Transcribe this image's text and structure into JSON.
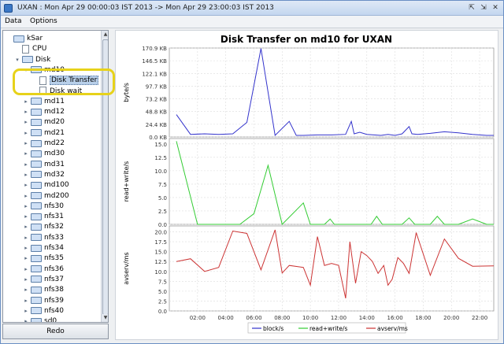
{
  "window": {
    "title": "UXAN : Mon Apr 29 00:00:03 IST 2013 -> Mon Apr 29 23:00:03 IST 2013",
    "controls": [
      "⇱",
      "⇲",
      "✕"
    ]
  },
  "menubar": {
    "items": [
      "Data",
      "Options"
    ]
  },
  "tree": {
    "root": "kSar",
    "items": [
      {
        "label": "kSar",
        "type": "folder",
        "level": 0,
        "twisty": ""
      },
      {
        "label": "CPU",
        "type": "file",
        "level": 1,
        "twisty": ""
      },
      {
        "label": "Disk",
        "type": "folder",
        "level": 1,
        "twisty": "▾"
      },
      {
        "label": "md10",
        "type": "folder",
        "level": 2,
        "twisty": "▾"
      },
      {
        "label": "Disk Transfer",
        "type": "file",
        "level": 3,
        "twisty": "",
        "selected": true
      },
      {
        "label": "Disk wait",
        "type": "file",
        "level": 3,
        "twisty": ""
      },
      {
        "label": "md11",
        "type": "folder",
        "level": 2,
        "twisty": "▸"
      },
      {
        "label": "md12",
        "type": "folder",
        "level": 2,
        "twisty": "▸"
      },
      {
        "label": "md20",
        "type": "folder",
        "level": 2,
        "twisty": "▸"
      },
      {
        "label": "md21",
        "type": "folder",
        "level": 2,
        "twisty": "▸"
      },
      {
        "label": "md22",
        "type": "folder",
        "level": 2,
        "twisty": "▸"
      },
      {
        "label": "md30",
        "type": "folder",
        "level": 2,
        "twisty": "▸"
      },
      {
        "label": "md31",
        "type": "folder",
        "level": 2,
        "twisty": "▸"
      },
      {
        "label": "md32",
        "type": "folder",
        "level": 2,
        "twisty": "▸"
      },
      {
        "label": "md100",
        "type": "folder",
        "level": 2,
        "twisty": "▸"
      },
      {
        "label": "md200",
        "type": "folder",
        "level": 2,
        "twisty": "▸"
      },
      {
        "label": "nfs30",
        "type": "folder",
        "level": 2,
        "twisty": "▸"
      },
      {
        "label": "nfs31",
        "type": "folder",
        "level": 2,
        "twisty": "▸"
      },
      {
        "label": "nfs32",
        "type": "folder",
        "level": 2,
        "twisty": "▸"
      },
      {
        "label": "nfs33",
        "type": "folder",
        "level": 2,
        "twisty": "▸"
      },
      {
        "label": "nfs34",
        "type": "folder",
        "level": 2,
        "twisty": "▸"
      },
      {
        "label": "nfs35",
        "type": "folder",
        "level": 2,
        "twisty": "▸"
      },
      {
        "label": "nfs36",
        "type": "folder",
        "level": 2,
        "twisty": "▸"
      },
      {
        "label": "nfs37",
        "type": "folder",
        "level": 2,
        "twisty": "▸"
      },
      {
        "label": "nfs38",
        "type": "folder",
        "level": 2,
        "twisty": "▸"
      },
      {
        "label": "nfs39",
        "type": "folder",
        "level": 2,
        "twisty": "▸"
      },
      {
        "label": "nfs40",
        "type": "folder",
        "level": 2,
        "twisty": "▸"
      },
      {
        "label": "sd0",
        "type": "folder",
        "level": 2,
        "twisty": "▸"
      }
    ]
  },
  "redo_button": {
    "label": "Redo"
  },
  "colors": {
    "block": "#3333cc",
    "rw": "#33cc33",
    "avserv": "#cc3333",
    "highlight": "#e7d21a"
  },
  "chart_data": {
    "type": "line",
    "title": "Disk Transfer on md10 for UXAN",
    "x_ticks": [
      "02:00",
      "04:00",
      "06:00",
      "08:00",
      "10:00",
      "12:00",
      "14:00",
      "16:00",
      "18:00",
      "20:00",
      "22:00"
    ],
    "x_range_hours": [
      0,
      23
    ],
    "panels": [
      {
        "ylabel": "byte/s",
        "yticks": [
          "0.0 KB",
          "24.4 KB",
          "48.8 KB",
          "73.2 KB",
          "97.7 KB",
          "122.1 KB",
          "146.5 KB",
          "170.9 KB"
        ],
        "ymax": 170.9,
        "series": {
          "name": "block/s",
          "points": [
            [
              0.5,
              43
            ],
            [
              1.5,
              5
            ],
            [
              2.5,
              6
            ],
            [
              3.5,
              5
            ],
            [
              4.5,
              6
            ],
            [
              5.5,
              28
            ],
            [
              6.5,
              170
            ],
            [
              7.5,
              3
            ],
            [
              8.5,
              30
            ],
            [
              9.0,
              3
            ],
            [
              9.5,
              3
            ],
            [
              10.5,
              4
            ],
            [
              11.5,
              4
            ],
            [
              12.5,
              5
            ],
            [
              12.9,
              30
            ],
            [
              13.1,
              6
            ],
            [
              13.5,
              9
            ],
            [
              14.0,
              5
            ],
            [
              15.0,
              3
            ],
            [
              15.5,
              5
            ],
            [
              16.0,
              3
            ],
            [
              16.5,
              6
            ],
            [
              17.0,
              20
            ],
            [
              17.2,
              6
            ],
            [
              17.6,
              5
            ],
            [
              18.5,
              7
            ],
            [
              19.5,
              10
            ],
            [
              20.5,
              8
            ],
            [
              21.5,
              5
            ],
            [
              22.5,
              3
            ],
            [
              23.0,
              3
            ]
          ]
        }
      },
      {
        "ylabel": "read+write/s",
        "yticks": [
          "0.0",
          "2.5",
          "5.0",
          "7.5",
          "10.0",
          "12.5",
          "15.0"
        ],
        "ymax": 16,
        "series": {
          "name": "read+write/s",
          "points": [
            [
              0.5,
              15.5
            ],
            [
              2.0,
              0
            ],
            [
              5.0,
              0
            ],
            [
              6.0,
              2
            ],
            [
              7.0,
              11
            ],
            [
              8.0,
              0
            ],
            [
              9.5,
              4
            ],
            [
              10.0,
              0
            ],
            [
              11.0,
              0
            ],
            [
              11.4,
              1
            ],
            [
              11.7,
              0
            ],
            [
              14.3,
              0
            ],
            [
              14.7,
              1.5
            ],
            [
              15.1,
              0
            ],
            [
              16.5,
              0
            ],
            [
              17.0,
              1.2
            ],
            [
              17.4,
              0
            ],
            [
              18.5,
              0
            ],
            [
              19.0,
              1.5
            ],
            [
              19.5,
              0
            ],
            [
              20.5,
              0
            ],
            [
              21.5,
              1
            ],
            [
              22.5,
              0
            ],
            [
              23.0,
              0
            ]
          ]
        }
      },
      {
        "ylabel": "avserv/ms",
        "yticks": [
          "0.0",
          "2.5",
          "5.0",
          "7.5",
          "10.0",
          "12.5",
          "15.0",
          "17.5",
          "20.0"
        ],
        "ymax": 21.5,
        "series": {
          "name": "avserv/ms",
          "points": [
            [
              0.5,
              12.5
            ],
            [
              1.5,
              13.2
            ],
            [
              2.5,
              10
            ],
            [
              3.5,
              11
            ],
            [
              4.5,
              20.2
            ],
            [
              5.5,
              19.6
            ],
            [
              6.5,
              10.4
            ],
            [
              7.5,
              20.5
            ],
            [
              8.0,
              9.6
            ],
            [
              8.5,
              11.5
            ],
            [
              9.5,
              11
            ],
            [
              10.0,
              6.5
            ],
            [
              10.5,
              18.8
            ],
            [
              11.0,
              11.5
            ],
            [
              11.5,
              12
            ],
            [
              12.0,
              11.5
            ],
            [
              12.5,
              3.2
            ],
            [
              12.8,
              17.5
            ],
            [
              13.2,
              7
            ],
            [
              13.6,
              15
            ],
            [
              14.0,
              14
            ],
            [
              14.4,
              12.5
            ],
            [
              14.8,
              9.5
            ],
            [
              15.2,
              11.5
            ],
            [
              15.5,
              6.5
            ],
            [
              15.8,
              8
            ],
            [
              16.2,
              13.5
            ],
            [
              16.6,
              12
            ],
            [
              17.0,
              9.5
            ],
            [
              17.5,
              19.8
            ],
            [
              18.5,
              9
            ],
            [
              19.5,
              18.2
            ],
            [
              20.5,
              13.3
            ],
            [
              21.5,
              11.3
            ],
            [
              23.0,
              11.4
            ]
          ]
        }
      }
    ],
    "legend": {
      "placement": "bottom",
      "entries": [
        "block/s",
        "read+write/s",
        "avserv/ms"
      ]
    }
  }
}
